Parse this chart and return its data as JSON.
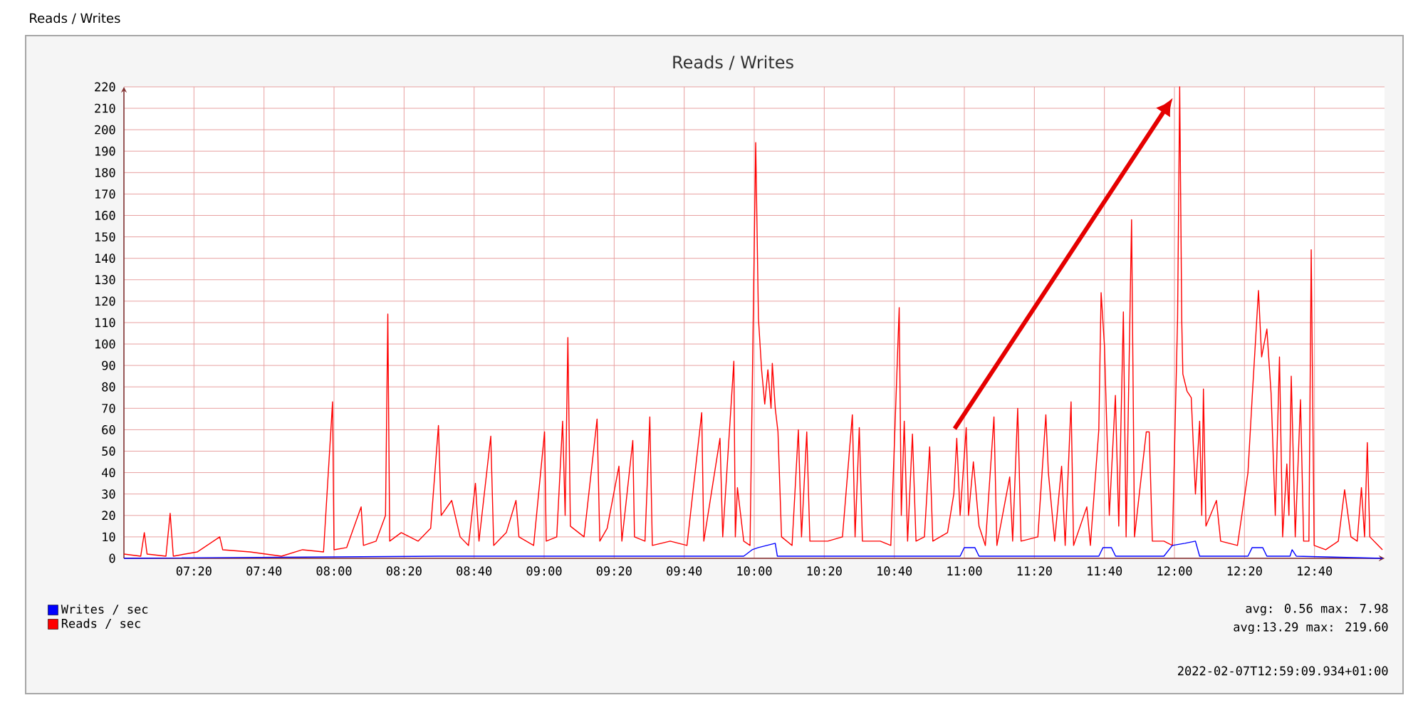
{
  "chart_data": {
    "type": "line",
    "title": "Reads / Writes",
    "annotations": [
      "Reads / Writes",
      "avg: 0.56  max: 7.98",
      "avg:13.29  max: 219.60",
      "2022-02-07T12:59:09.934+01:00"
    ],
    "xlim": [
      7.0,
      13.0
    ],
    "xticks": [
      {
        "value": 7.3333,
        "label": "07:20"
      },
      {
        "value": 7.6667,
        "label": "07:40"
      },
      {
        "value": 8.0,
        "label": "08:00"
      },
      {
        "value": 8.3333,
        "label": "08:20"
      },
      {
        "value": 8.6667,
        "label": "08:40"
      },
      {
        "value": 9.0,
        "label": "09:00"
      },
      {
        "value": 9.3333,
        "label": "09:20"
      },
      {
        "value": 9.6667,
        "label": "09:40"
      },
      {
        "value": 10.0,
        "label": "10:00"
      },
      {
        "value": 10.3333,
        "label": "10:20"
      },
      {
        "value": 10.6667,
        "label": "10:40"
      },
      {
        "value": 11.0,
        "label": "11:00"
      },
      {
        "value": 11.3333,
        "label": "11:20"
      },
      {
        "value": 11.6667,
        "label": "11:40"
      },
      {
        "value": 12.0,
        "label": "12:00"
      },
      {
        "value": 12.3333,
        "label": "12:20"
      },
      {
        "value": 12.6667,
        "label": "12:40"
      }
    ],
    "ylim": [
      0,
      220
    ],
    "yticks": [
      0,
      10,
      20,
      30,
      40,
      50,
      60,
      70,
      80,
      90,
      100,
      110,
      120,
      130,
      140,
      150,
      160,
      170,
      180,
      190,
      200,
      210,
      220
    ],
    "grid": true,
    "legend": "bottom left",
    "series": [
      {
        "name": "Writes / sec",
        "color": "#0000ff",
        "x": [
          7.0,
          8.5,
          9.0,
          9.95,
          9.99,
          10.02,
          10.06,
          10.1,
          10.11,
          10.9,
          10.98,
          11.0,
          11.05,
          11.07,
          11.3,
          11.64,
          11.66,
          11.7,
          11.72,
          11.95,
          11.99,
          12.05,
          12.1,
          12.12,
          12.35,
          12.37,
          12.42,
          12.44,
          12.55,
          12.56,
          12.58,
          12.99
        ],
        "values": [
          0,
          1,
          1,
          1,
          4,
          5,
          6,
          7,
          1,
          1,
          1,
          5,
          5,
          1,
          1,
          1,
          5,
          5,
          1,
          1,
          6,
          7,
          8,
          1,
          1,
          5,
          5,
          1,
          1,
          4,
          1,
          0
        ]
      },
      {
        "name": "Reads / sec",
        "color": "#ff0000",
        "x": [
          7.0,
          7.08,
          7.097,
          7.11,
          7.2,
          7.22,
          7.235,
          7.35,
          7.456,
          7.47,
          7.6,
          7.75,
          7.85,
          7.95,
          7.993,
          8.0,
          8.06,
          8.129,
          8.14,
          8.2,
          8.245,
          8.256,
          8.265,
          8.32,
          8.4,
          8.46,
          8.497,
          8.51,
          8.56,
          8.6,
          8.64,
          8.673,
          8.69,
          8.746,
          8.76,
          8.82,
          8.866,
          8.88,
          8.95,
          9.002,
          9.01,
          9.06,
          9.088,
          9.1,
          9.113,
          9.125,
          9.19,
          9.252,
          9.265,
          9.3,
          9.356,
          9.37,
          9.422,
          9.43,
          9.48,
          9.503,
          9.515,
          9.6,
          9.68,
          9.75,
          9.76,
          9.837,
          9.85,
          9.903,
          9.91,
          9.92,
          9.95,
          9.98,
          10.007,
          10.02,
          10.035,
          10.05,
          10.065,
          10.08,
          10.086,
          10.1,
          10.113,
          10.13,
          10.18,
          10.21,
          10.225,
          10.25,
          10.265,
          10.35,
          10.42,
          10.467,
          10.48,
          10.5,
          10.515,
          10.6,
          10.65,
          10.69,
          10.7,
          10.714,
          10.73,
          10.753,
          10.77,
          10.81,
          10.835,
          10.85,
          10.92,
          10.95,
          10.964,
          10.98,
          11.009,
          11.02,
          11.043,
          11.07,
          11.1,
          11.141,
          11.155,
          11.216,
          11.23,
          11.254,
          11.27,
          11.35,
          11.388,
          11.4,
          11.43,
          11.463,
          11.48,
          11.508,
          11.52,
          11.583,
          11.6,
          11.64,
          11.651,
          11.667,
          11.69,
          11.719,
          11.735,
          11.757,
          11.77,
          11.796,
          11.81,
          11.866,
          11.88,
          11.895,
          11.95,
          11.99,
          12.015,
          12.025,
          12.035,
          12.04,
          12.06,
          12.08,
          12.1,
          12.12,
          12.13,
          12.138,
          12.15,
          12.2,
          12.22,
          12.3,
          12.35,
          12.37,
          12.4,
          12.415,
          12.44,
          12.46,
          12.48,
          12.5,
          12.515,
          12.535,
          12.545,
          12.556,
          12.575,
          12.6,
          12.615,
          12.64,
          12.651,
          12.665,
          12.72,
          12.78,
          12.81,
          12.84,
          12.87,
          12.89,
          12.905,
          12.918,
          12.93,
          12.99
        ],
        "values": [
          2,
          1,
          12,
          2,
          1,
          21,
          1,
          3,
          10,
          4,
          3,
          1,
          4,
          3,
          73,
          4,
          5,
          24,
          6,
          8,
          20,
          114,
          8,
          12,
          8,
          14,
          62,
          20,
          27,
          10,
          6,
          35,
          8,
          57,
          6,
          12,
          27,
          10,
          6,
          59,
          8,
          10,
          64,
          20,
          103,
          15,
          10,
          65,
          8,
          14,
          43,
          8,
          55,
          10,
          8,
          66,
          6,
          8,
          6,
          68,
          8,
          56,
          10,
          92,
          10,
          33,
          8,
          6,
          194,
          112,
          88,
          72,
          88,
          70,
          91,
          70,
          59,
          10,
          6,
          60,
          10,
          59,
          8,
          8,
          10,
          67,
          10,
          61,
          8,
          8,
          6,
          117,
          20,
          64,
          8,
          58,
          8,
          10,
          52,
          8,
          12,
          30,
          56,
          20,
          61,
          20,
          45,
          15,
          6,
          66,
          6,
          38,
          8,
          70,
          8,
          10,
          67,
          40,
          8,
          43,
          6,
          73,
          6,
          24,
          6,
          60,
          124,
          99,
          20,
          76,
          15,
          115,
          10,
          158,
          10,
          59,
          59,
          8,
          8,
          6,
          112,
          220,
          110,
          86,
          78,
          75,
          30,
          64,
          20,
          79,
          15,
          27,
          8,
          6,
          40,
          75,
          125,
          94,
          107,
          77,
          20,
          94,
          10,
          44,
          20,
          85,
          10,
          74,
          8,
          8,
          144,
          6,
          4,
          8,
          32,
          10,
          8,
          33,
          10,
          54,
          10,
          4
        ]
      }
    ]
  }
}
